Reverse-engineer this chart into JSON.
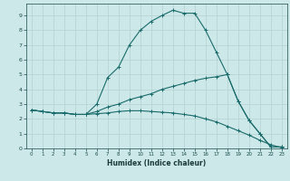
{
  "xlabel": "Humidex (Indice chaleur)",
  "bg_color": "#cde8e8",
  "grid_color": "#b8d4d4",
  "line_color": "#1a6b6b",
  "xlim": [
    -0.5,
    23.5
  ],
  "ylim": [
    0,
    9.8
  ],
  "xticks": [
    0,
    1,
    2,
    3,
    4,
    5,
    6,
    7,
    8,
    9,
    10,
    11,
    12,
    13,
    14,
    15,
    16,
    17,
    18,
    19,
    20,
    21,
    22,
    23
  ],
  "yticks": [
    0,
    1,
    2,
    3,
    4,
    5,
    6,
    7,
    8,
    9
  ],
  "line1_x": [
    0,
    1,
    2,
    3,
    4,
    5,
    6,
    7,
    8,
    9,
    10,
    11,
    12,
    13,
    14,
    15,
    16,
    17,
    18,
    19,
    20,
    21,
    22,
    23
  ],
  "line1_y": [
    2.6,
    2.5,
    2.4,
    2.4,
    2.3,
    2.3,
    3.0,
    4.8,
    5.5,
    7.0,
    8.0,
    8.6,
    9.0,
    9.35,
    9.15,
    9.15,
    8.0,
    6.5,
    5.0,
    3.2,
    1.9,
    1.0,
    0.1,
    0.1
  ],
  "line2_x": [
    0,
    1,
    2,
    3,
    4,
    5,
    6,
    7,
    8,
    9,
    10,
    11,
    12,
    13,
    14,
    15,
    16,
    17,
    18,
    19,
    20,
    21,
    22,
    23
  ],
  "line2_y": [
    2.6,
    2.5,
    2.4,
    2.4,
    2.3,
    2.3,
    2.5,
    2.8,
    3.0,
    3.3,
    3.5,
    3.7,
    4.0,
    4.2,
    4.4,
    4.6,
    4.75,
    4.85,
    5.0,
    3.2,
    1.9,
    1.0,
    0.1,
    0.1
  ],
  "line3_x": [
    0,
    1,
    2,
    3,
    4,
    5,
    6,
    7,
    8,
    9,
    10,
    11,
    12,
    13,
    14,
    15,
    16,
    17,
    18,
    19,
    20,
    21,
    22,
    23
  ],
  "line3_y": [
    2.6,
    2.5,
    2.4,
    2.4,
    2.3,
    2.3,
    2.35,
    2.4,
    2.5,
    2.55,
    2.55,
    2.5,
    2.45,
    2.4,
    2.3,
    2.2,
    2.0,
    1.8,
    1.5,
    1.2,
    0.9,
    0.55,
    0.25,
    0.05
  ]
}
